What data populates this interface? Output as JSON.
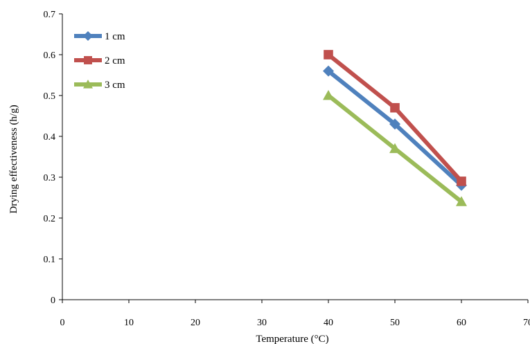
{
  "chart_data": {
    "type": "line",
    "title": "",
    "xlabel": "Temperature (°C)",
    "ylabel": "Drying effectiveness (h/g)",
    "xlim": [
      0,
      70
    ],
    "ylim": [
      0,
      0.7
    ],
    "xticks": [
      "0",
      "10",
      "20",
      "30",
      "40",
      "50",
      "60",
      "70"
    ],
    "yticks": [
      "0",
      "0.1",
      "0.2",
      "0.3",
      "0.4",
      "0.5",
      "0.6",
      "0.7"
    ],
    "grid": false,
    "legend_position": "top-left",
    "series": [
      {
        "name": "1 cm",
        "color": "#4F81BD",
        "marker": "diamond",
        "x": [
          40,
          50,
          60
        ],
        "y": [
          0.56,
          0.43,
          0.28
        ]
      },
      {
        "name": "2 cm",
        "color": "#C0504D",
        "marker": "square",
        "x": [
          40,
          50,
          60
        ],
        "y": [
          0.6,
          0.47,
          0.29
        ]
      },
      {
        "name": "3 cm",
        "color": "#9BBB59",
        "marker": "triangle",
        "x": [
          40,
          50,
          60
        ],
        "y": [
          0.5,
          0.37,
          0.24
        ]
      }
    ]
  }
}
